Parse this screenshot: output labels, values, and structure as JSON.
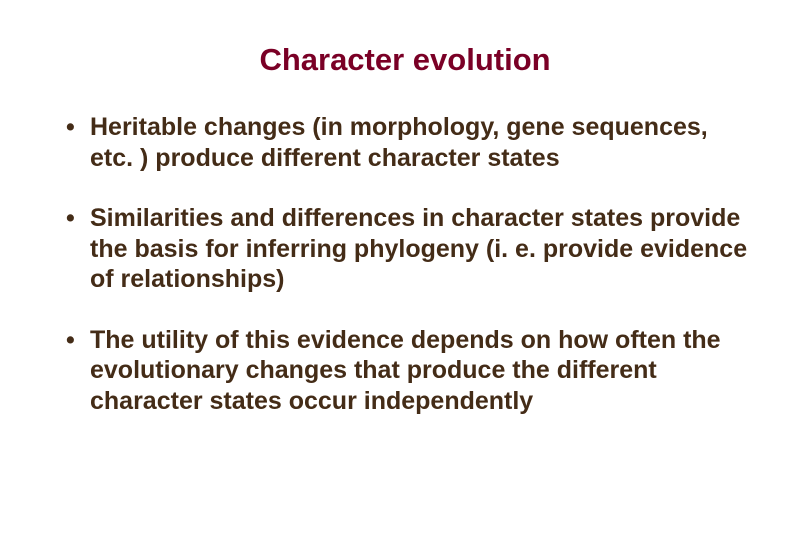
{
  "title": {
    "text": "Character evolution",
    "color": "#7a0026",
    "fontsize": 31
  },
  "bullet_style": {
    "color": "#442c17",
    "fontsize": 25,
    "bullet_color": "#442c17"
  },
  "bullets": [
    "Heritable changes (in morphology, gene sequences, etc. ) produce different character states",
    "Similarities and differences in character states provide the basis for inferring phylogeny (i. e. provide evidence of relationships)",
    "The utility of this evidence depends on how often the evolutionary changes that produce the different character states occur independently"
  ]
}
